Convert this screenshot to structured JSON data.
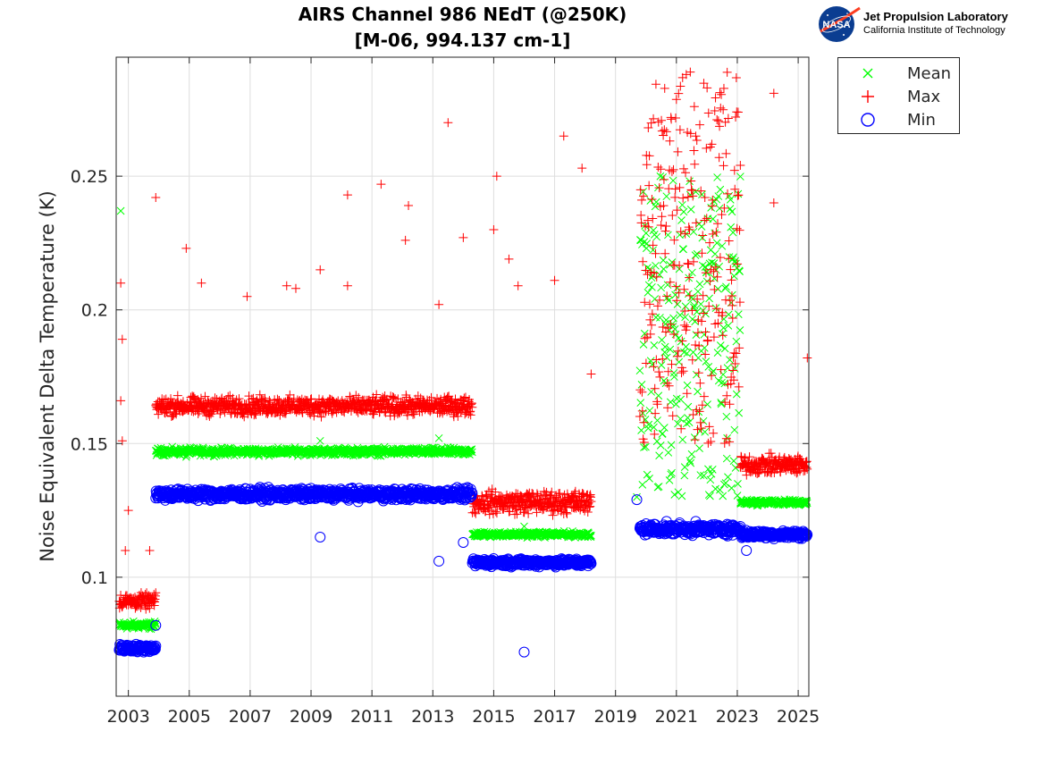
{
  "chart_data": {
    "type": "scatter",
    "title": "AIRS Channel 986 NEdT (@250K)",
    "subtitle": "[M-06, 994.137 cm-1]",
    "xlabel": "",
    "ylabel": "Noise Equivalent Delta Temperature (K)",
    "xlim": [
      2002.6,
      2025.35
    ],
    "ylim": [
      0.0555,
      0.2945
    ],
    "x_ticks": [
      "2003",
      "2005",
      "2007",
      "2009",
      "2011",
      "2013",
      "2015",
      "2017",
      "2019",
      "2021",
      "2023",
      "2025"
    ],
    "y_ticks": [
      "0.1",
      "0.15",
      "0.2",
      "0.25"
    ],
    "grid": true,
    "legend_position": "outside-top-right",
    "colors": {
      "mean": "#00ff00",
      "max": "#ff0000",
      "min": "#0000ff"
    },
    "series": [
      {
        "name": "Mean",
        "marker": "x",
        "segments": [
          {
            "x": [
              2002.7,
              2003.9
            ],
            "level": 0.082,
            "spread": 0.002
          },
          {
            "x": [
              2003.9,
              2014.3
            ],
            "level": 0.147,
            "spread": 0.002
          },
          {
            "x": [
              2014.3,
              2018.2
            ],
            "level": 0.116,
            "spread": 0.0015
          },
          {
            "x": [
              2019.8,
              2023.1
            ],
            "level": 0.19,
            "spread": 0.06
          },
          {
            "x": [
              2023.1,
              2025.3
            ],
            "level": 0.128,
            "spread": 0.0015
          }
        ],
        "outliers": [
          [
            2002.75,
            0.237
          ],
          [
            2009.3,
            0.151
          ],
          [
            2013.2,
            0.152
          ],
          [
            2004.9,
            0.145
          ],
          [
            2016.0,
            0.119
          ],
          [
            2019.7,
            0.13
          ]
        ]
      },
      {
        "name": "Max",
        "marker": "+",
        "segments": [
          {
            "x": [
              2002.7,
              2003.9
            ],
            "level": 0.091,
            "spread": 0.004
          },
          {
            "x": [
              2003.9,
              2014.3
            ],
            "level": 0.164,
            "spread": 0.005
          },
          {
            "x": [
              2014.3,
              2018.2
            ],
            "level": 0.128,
            "spread": 0.006
          },
          {
            "x": [
              2019.8,
              2023.1
            ],
            "level": 0.22,
            "spread": 0.07
          },
          {
            "x": [
              2023.1,
              2025.3
            ],
            "level": 0.142,
            "spread": 0.005
          }
        ],
        "outliers": [
          [
            2002.75,
            0.21
          ],
          [
            2002.8,
            0.189
          ],
          [
            2002.75,
            0.166
          ],
          [
            2002.8,
            0.151
          ],
          [
            2003.0,
            0.125
          ],
          [
            2002.9,
            0.11
          ],
          [
            2003.7,
            0.11
          ],
          [
            2003.9,
            0.242
          ],
          [
            2004.9,
            0.223
          ],
          [
            2005.4,
            0.21
          ],
          [
            2006.9,
            0.205
          ],
          [
            2008.2,
            0.209
          ],
          [
            2008.5,
            0.208
          ],
          [
            2009.3,
            0.215
          ],
          [
            2010.2,
            0.243
          ],
          [
            2010.2,
            0.209
          ],
          [
            2011.3,
            0.247
          ],
          [
            2012.2,
            0.239
          ],
          [
            2012.1,
            0.226
          ],
          [
            2013.5,
            0.27
          ],
          [
            2014.0,
            0.227
          ],
          [
            2013.2,
            0.202
          ],
          [
            2015.1,
            0.25
          ],
          [
            2015.0,
            0.23
          ],
          [
            2015.5,
            0.219
          ],
          [
            2015.8,
            0.209
          ],
          [
            2017.3,
            0.265
          ],
          [
            2017.9,
            0.253
          ],
          [
            2017.0,
            0.211
          ],
          [
            2018.2,
            0.176
          ],
          [
            2024.2,
            0.281
          ],
          [
            2024.2,
            0.24
          ],
          [
            2025.3,
            0.182
          ]
        ]
      },
      {
        "name": "Min",
        "marker": "o",
        "segments": [
          {
            "x": [
              2002.7,
              2003.9
            ],
            "level": 0.0735,
            "spread": 0.002
          },
          {
            "x": [
              2003.9,
              2014.3
            ],
            "level": 0.131,
            "spread": 0.003
          },
          {
            "x": [
              2014.3,
              2018.2
            ],
            "level": 0.1055,
            "spread": 0.002
          },
          {
            "x": [
              2019.8,
              2023.1
            ],
            "level": 0.118,
            "spread": 0.003
          },
          {
            "x": [
              2023.1,
              2025.3
            ],
            "level": 0.116,
            "spread": 0.002
          }
        ],
        "outliers": [
          [
            2003.9,
            0.082
          ],
          [
            2009.3,
            0.115
          ],
          [
            2013.2,
            0.106
          ],
          [
            2014.0,
            0.113
          ],
          [
            2016.0,
            0.072
          ],
          [
            2019.7,
            0.129
          ],
          [
            2023.3,
            0.11
          ]
        ]
      }
    ]
  },
  "logo": {
    "badge_text": "NASA",
    "line1": "Jet Propulsion Laboratory",
    "line2": "California Institute of Technology"
  }
}
